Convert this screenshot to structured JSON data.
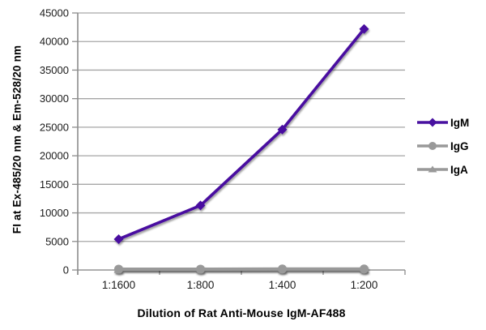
{
  "chart_data": {
    "type": "line",
    "title": "",
    "xlabel": "Dilution of Rat Anti-Mouse IgM-AF488",
    "ylabel": "FI at Ex-485/20 nm & Em-528/20 nm",
    "categories": [
      "1:1600",
      "1:800",
      "1:400",
      "1:200"
    ],
    "series": [
      {
        "name": "IgM",
        "marker": "diamond",
        "color": "#4811A0",
        "values": [
          5400,
          11300,
          24600,
          42200
        ]
      },
      {
        "name": "IgG",
        "marker": "circle",
        "color": "#999999",
        "values": [
          150,
          150,
          180,
          180
        ]
      },
      {
        "name": "IgA",
        "marker": "triangle",
        "color": "#999999",
        "values": [
          80,
          80,
          80,
          80
        ]
      }
    ],
    "ylim": [
      0,
      45000
    ],
    "ytick_step": 5000,
    "grid": true,
    "legend_position": "right",
    "colors": {
      "gridline": "#A6A6A6",
      "axis": "#8C8C8C",
      "tick_label": "#1a1a1a",
      "background": "#ffffff"
    }
  }
}
